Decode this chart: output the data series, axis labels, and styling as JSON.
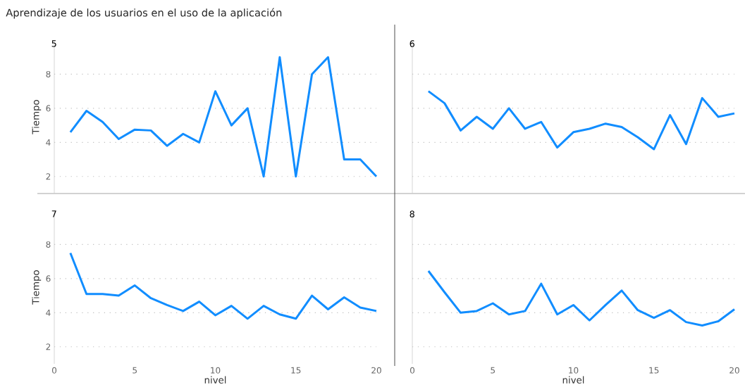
{
  "chart_data": [
    {
      "type": "line",
      "title": "Aprendizaje de los usuarios en el uso de la aplicación",
      "subtitle": "5",
      "ylabel": "Tiempo",
      "x": [
        1,
        2,
        3,
        4,
        5,
        6,
        7,
        8,
        9,
        10,
        11,
        12,
        13,
        14,
        15,
        16,
        17,
        18,
        19,
        20
      ],
      "values": [
        4.6,
        5.85,
        5.2,
        4.2,
        4.75,
        4.7,
        3.8,
        4.5,
        4.0,
        7.0,
        5.0,
        6.0,
        2,
        9,
        2,
        8,
        9,
        3,
        3,
        2
      ],
      "color": "#118dff",
      "xlim": [
        0,
        20
      ],
      "ylim": [
        1,
        10
      ],
      "xticks": [
        0,
        5,
        10,
        15,
        20
      ],
      "yticks": [
        2,
        4,
        6,
        8
      ],
      "grid": "y",
      "tick_labels": "y"
    },
    {
      "type": "line",
      "title": "6",
      "x": [
        1,
        2,
        3,
        4,
        5,
        6,
        7,
        8,
        9,
        10,
        11,
        12,
        13,
        14,
        15,
        16,
        17,
        18,
        19,
        20
      ],
      "values": [
        7.0,
        6.3,
        4.7,
        5.5,
        4.8,
        6.0,
        4.8,
        5.2,
        3.7,
        4.6,
        4.8,
        5.1,
        4.9,
        4.3,
        3.6,
        5.6,
        3.9,
        6.6,
        5.5,
        5.7
      ],
      "color": "#118dff",
      "xlim": [
        0,
        20
      ],
      "ylim": [
        1,
        10
      ],
      "xticks": [
        0,
        5,
        10,
        15,
        20
      ],
      "yticks": [
        2,
        4,
        6,
        8
      ],
      "grid": "y",
      "tick_labels": false
    },
    {
      "type": "line",
      "title": "7",
      "xlabel": "nivel",
      "ylabel": "Tiempo",
      "x": [
        1,
        2,
        3,
        4,
        5,
        6,
        7,
        8,
        9,
        10,
        11,
        12,
        13,
        14,
        15,
        16,
        17,
        18,
        19,
        20
      ],
      "values": [
        7.5,
        5.1,
        5.1,
        5.0,
        5.6,
        4.85,
        4.45,
        4.1,
        4.65,
        3.85,
        4.4,
        3.65,
        4.4,
        3.9,
        3.65,
        5.0,
        4.2,
        4.9,
        4.3,
        4.1
      ],
      "color": "#118dff",
      "xlim": [
        0,
        20
      ],
      "ylim": [
        1,
        10
      ],
      "xticks": [
        0,
        5,
        10,
        15,
        20
      ],
      "yticks": [
        2,
        4,
        6,
        8
      ],
      "grid": "y"
    },
    {
      "type": "line",
      "title": "8",
      "xlabel": "nivel",
      "x": [
        1,
        2,
        3,
        4,
        5,
        6,
        7,
        8,
        9,
        10,
        11,
        12,
        13,
        14,
        15,
        16,
        17,
        18,
        19,
        20
      ],
      "values": [
        6.45,
        5.2,
        4.0,
        4.1,
        4.55,
        3.9,
        4.1,
        5.7,
        3.9,
        4.45,
        3.55,
        4.45,
        5.3,
        4.15,
        3.7,
        4.15,
        3.45,
        3.25,
        3.5,
        4.2
      ],
      "color": "#118dff",
      "xlim": [
        0,
        20
      ],
      "ylim": [
        1,
        10
      ],
      "xticks": [
        0,
        5,
        10,
        15,
        20
      ],
      "yticks": [
        2,
        4,
        6,
        8
      ],
      "grid": "y",
      "tick_labels": "x"
    }
  ]
}
